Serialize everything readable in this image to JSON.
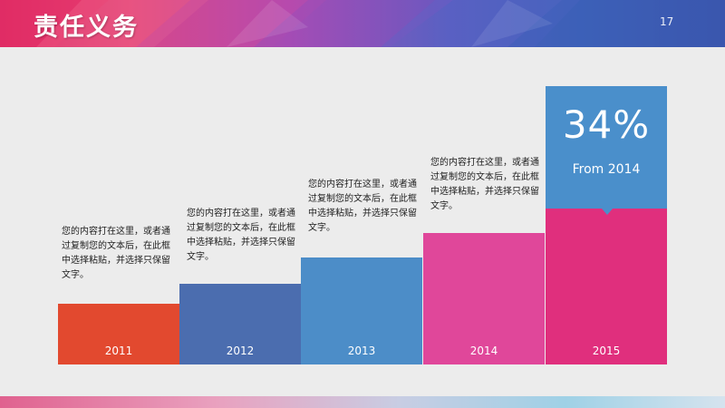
{
  "header": {
    "title": "责任义务",
    "page_number": "17"
  },
  "columns": [
    {
      "year": "2011",
      "color": "#e2492f",
      "text": "您的内容打在这里，或者通过复制您的文本后，在此框中选择粘贴，并选择只保留文字。"
    },
    {
      "year": "2012",
      "color": "#4b6daf",
      "text": "您的内容打在这里，或者通过复制您的文本后，在此框中选择粘贴，并选择只保留文字。"
    },
    {
      "year": "2013",
      "color": "#4c8dc8",
      "text": "您的内容打在这里，或者通过复制您的文本后，在此框中选择粘贴，并选择只保留文字。"
    },
    {
      "year": "2014",
      "color": "#e0479a",
      "text": "您的内容打在这里，或者通过复制您的文本后，在此框中选择粘贴，并选择只保留文字。"
    },
    {
      "year": "2015",
      "color": "#e02f7d",
      "text": ""
    }
  ],
  "callout": {
    "value": "34%",
    "subtitle": "From 2014",
    "color": "#4a8fcb"
  }
}
